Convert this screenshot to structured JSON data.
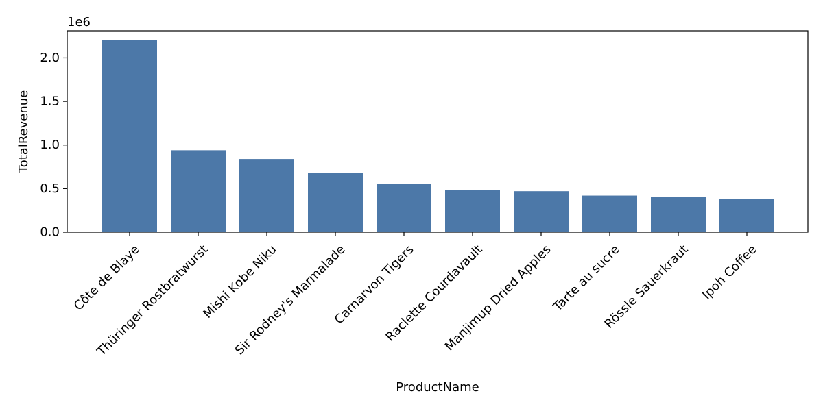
{
  "chart_data": {
    "type": "bar",
    "xlabel": "ProductName",
    "ylabel": "TotalRevenue",
    "offset_text": "1e6",
    "categories": [
      "Côte de Blaye",
      "Thüringer Rostbratwurst",
      "Mishi Kobe Niku",
      "Sir Rodney's Marmalade",
      "Carnarvon Tigers",
      "Raclette Courdavault",
      "Manjimup Dried Apples",
      "Tarte au sucre",
      "Rössle Sauerkraut",
      "Ipoh Coffee"
    ],
    "values": [
      2200000,
      940000,
      840000,
      680000,
      555000,
      485000,
      470000,
      420000,
      405000,
      380000
    ],
    "ylim": [
      0,
      2310000
    ],
    "yticks": [
      0,
      500000,
      1000000,
      1500000,
      2000000
    ],
    "ytick_labels": [
      "0.0",
      "0.5",
      "1.0",
      "1.5",
      "2.0"
    ],
    "bar_color": "#4c78a8",
    "grid": false,
    "legend": "none"
  }
}
